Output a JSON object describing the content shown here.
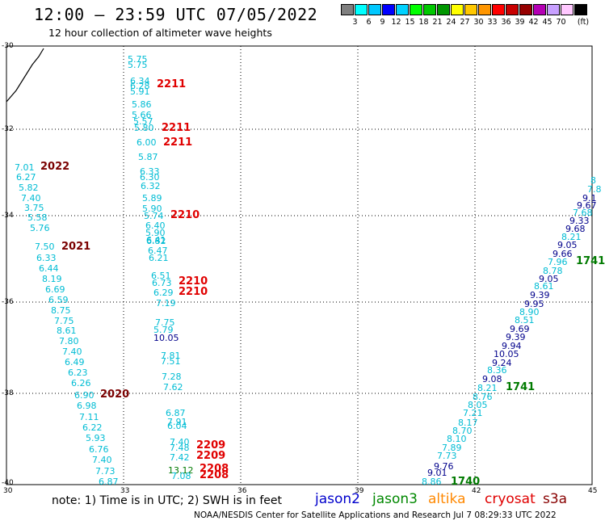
{
  "header": {
    "title": "12:00 – 23:59 UTC 07/05/2022",
    "subtitle": "12 hour collection of altimeter wave heights"
  },
  "legend": {
    "unit_label": "(ft)",
    "ticks": [
      "3",
      "6",
      "9",
      "12",
      "15",
      "18",
      "21",
      "24",
      "27",
      "30",
      "33",
      "36",
      "39",
      "42",
      "45",
      "70"
    ],
    "colors": [
      "#7f7f7f",
      "#00ffff",
      "#00c8ff",
      "#0000ff",
      "#00d2ff",
      "#00ff00",
      "#00c800",
      "#009600",
      "#ffff00",
      "#ffc800",
      "#ff9600",
      "#ff0000",
      "#c80000",
      "#960000",
      "#b400b4",
      "#c8a0ff",
      "#ffc8ff",
      "#000000"
    ]
  },
  "axes": {
    "x_ticks": [
      "30",
      "33",
      "36",
      "39",
      "42",
      "45"
    ],
    "y_ticks": [
      "-30",
      "-32",
      "-34",
      "-36",
      "-38",
      "-40"
    ]
  },
  "colors": {
    "cyan": "#00bcd4",
    "blue": "#00008b",
    "red": "#e00000",
    "darkred": "#7a0000",
    "green": "#007a00"
  },
  "labels": [
    {
      "t": "5.75",
      "c": "cyan"
    },
    {
      "t": "5.75",
      "c": "cyan"
    },
    {
      "t": "6.34",
      "c": "cyan"
    },
    {
      "t": "6.28",
      "c": "cyan"
    },
    {
      "t": "5.91",
      "c": "cyan"
    },
    {
      "t": "2211",
      "c": "red",
      "id": true
    },
    {
      "t": "5.86",
      "c": "cyan"
    },
    {
      "t": "5.66",
      "c": "cyan"
    },
    {
      "t": "5.57",
      "c": "cyan"
    },
    {
      "t": "5.80",
      "c": "cyan"
    },
    {
      "t": "2211",
      "c": "red",
      "id": true
    },
    {
      "t": "6.00",
      "c": "cyan"
    },
    {
      "t": "2211",
      "c": "red",
      "id": true
    },
    {
      "t": "5.87",
      "c": "cyan"
    },
    {
      "t": "6.33",
      "c": "cyan"
    },
    {
      "t": "6.30",
      "c": "cyan"
    },
    {
      "t": "6.32",
      "c": "cyan"
    },
    {
      "t": "7.01",
      "c": "cyan"
    },
    {
      "t": "2022",
      "c": "darkred",
      "id": true
    },
    {
      "t": "6.27",
      "c": "cyan"
    },
    {
      "t": "5.82",
      "c": "cyan"
    },
    {
      "t": "5.89",
      "c": "cyan"
    },
    {
      "t": "7.40",
      "c": "cyan"
    },
    {
      "t": "5.90",
      "c": "cyan"
    },
    {
      "t": "3.75",
      "c": "cyan"
    },
    {
      "t": "5.74",
      "c": "cyan"
    },
    {
      "t": "2210",
      "c": "red",
      "id": true
    },
    {
      "t": "5.58",
      "c": "cyan"
    },
    {
      "t": "6.40",
      "c": "cyan"
    },
    {
      "t": "5.90",
      "c": "cyan"
    },
    {
      "t": "5.76",
      "c": "cyan"
    },
    {
      "t": "6.41",
      "c": "cyan"
    },
    {
      "t": "6.82",
      "c": "cyan"
    },
    {
      "t": "7.50",
      "c": "cyan"
    },
    {
      "t": "2021",
      "c": "darkred",
      "id": true
    },
    {
      "t": "6.47",
      "c": "cyan"
    },
    {
      "t": "6.33",
      "c": "cyan"
    },
    {
      "t": "6.21",
      "c": "cyan"
    },
    {
      "t": "6.44",
      "c": "cyan"
    },
    {
      "t": "6.51",
      "c": "cyan"
    },
    {
      "t": "8.19",
      "c": "cyan"
    },
    {
      "t": "6.73",
      "c": "cyan"
    },
    {
      "t": "2210",
      "c": "red",
      "id": true
    },
    {
      "t": "6.69",
      "c": "cyan"
    },
    {
      "t": "6.29",
      "c": "cyan"
    },
    {
      "t": "2210",
      "c": "red",
      "id": true
    },
    {
      "t": "6.59",
      "c": "cyan"
    },
    {
      "t": "7.19",
      "c": "cyan"
    },
    {
      "t": "8.75",
      "c": "cyan"
    },
    {
      "t": "7.75",
      "c": "cyan"
    },
    {
      "t": "7.75",
      "c": "cyan"
    },
    {
      "t": "5.79",
      "c": "cyan"
    },
    {
      "t": "8.61",
      "c": "cyan"
    },
    {
      "t": "10.05",
      "c": "blue"
    },
    {
      "t": "7.80",
      "c": "cyan"
    },
    {
      "t": "7.40",
      "c": "cyan"
    },
    {
      "t": "7.81",
      "c": "cyan"
    },
    {
      "t": "6.49",
      "c": "cyan"
    },
    {
      "t": "7.51",
      "c": "cyan"
    },
    {
      "t": "6.23",
      "c": "cyan"
    },
    {
      "t": "7.28",
      "c": "cyan"
    },
    {
      "t": "6.26",
      "c": "cyan"
    },
    {
      "t": "7.62",
      "c": "cyan"
    },
    {
      "t": "6.90",
      "c": "cyan"
    },
    {
      "t": "2020",
      "c": "darkred",
      "id": true
    },
    {
      "t": "6.98",
      "c": "cyan"
    },
    {
      "t": "6.87",
      "c": "cyan"
    },
    {
      "t": "7.11",
      "c": "cyan"
    },
    {
      "t": "7.91",
      "c": "cyan"
    },
    {
      "t": "6.22",
      "c": "cyan"
    },
    {
      "t": "6.04",
      "c": "cyan"
    },
    {
      "t": "5.93",
      "c": "cyan"
    },
    {
      "t": "7.40",
      "c": "cyan"
    },
    {
      "t": "7.48",
      "c": "cyan"
    },
    {
      "t": "2209",
      "c": "red",
      "id": true
    },
    {
      "t": "6.76",
      "c": "cyan"
    },
    {
      "t": "7.42",
      "c": "cyan"
    },
    {
      "t": "2209",
      "c": "red",
      "id": true
    },
    {
      "t": "7.40",
      "c": "cyan"
    },
    {
      "t": "13.12",
      "c": "green"
    },
    {
      "t": "2208",
      "c": "red",
      "id": true
    },
    {
      "t": "7.73",
      "c": "cyan"
    },
    {
      "t": "7.08",
      "c": "cyan"
    },
    {
      "t": "2208",
      "c": "red",
      "id": true
    },
    {
      "t": "6.87",
      "c": "cyan"
    },
    {
      "t": "8.86",
      "c": "cyan"
    },
    {
      "t": "9.01",
      "c": "blue"
    },
    {
      "t": "1740",
      "c": "green",
      "id": true
    },
    {
      "t": "9.76",
      "c": "blue"
    },
    {
      "t": "7.73",
      "c": "cyan"
    },
    {
      "t": "7.89",
      "c": "cyan"
    },
    {
      "t": "8.10",
      "c": "cyan"
    },
    {
      "t": "8.70",
      "c": "cyan"
    },
    {
      "t": "8.17",
      "c": "cyan"
    },
    {
      "t": "7.21",
      "c": "cyan"
    },
    {
      "t": "8.05",
      "c": "cyan"
    },
    {
      "t": "8.76",
      "c": "cyan"
    },
    {
      "t": "8.21",
      "c": "cyan"
    },
    {
      "t": "1741",
      "c": "green",
      "id": true
    },
    {
      "t": "9.08",
      "c": "blue"
    },
    {
      "t": "8.36",
      "c": "cyan"
    },
    {
      "t": "9.24",
      "c": "blue"
    },
    {
      "t": "10.05",
      "c": "blue"
    },
    {
      "t": "9.94",
      "c": "blue"
    },
    {
      "t": "9.39",
      "c": "blue"
    },
    {
      "t": "9.69",
      "c": "blue"
    },
    {
      "t": "8.51",
      "c": "cyan"
    },
    {
      "t": "8.90",
      "c": "cyan"
    },
    {
      "t": "9.95",
      "c": "blue"
    },
    {
      "t": "9.39",
      "c": "blue"
    },
    {
      "t": "8.61",
      "c": "cyan"
    },
    {
      "t": "9.05",
      "c": "blue"
    },
    {
      "t": "8.78",
      "c": "cyan"
    },
    {
      "t": "7.96",
      "c": "cyan"
    },
    {
      "t": "1741",
      "c": "green",
      "id": true
    },
    {
      "t": "9.66",
      "c": "blue"
    },
    {
      "t": "9.05",
      "c": "blue"
    },
    {
      "t": "8.21",
      "c": "cyan"
    },
    {
      "t": "9.68",
      "c": "blue"
    },
    {
      "t": "9.33",
      "c": "blue"
    },
    {
      "t": "7.68",
      "c": "cyan"
    },
    {
      "t": "9.67",
      "c": "blue"
    },
    {
      "t": "9.1",
      "c": "blue"
    },
    {
      "t": "7.8",
      "c": "cyan"
    },
    {
      "t": "8",
      "c": "cyan"
    }
  ],
  "footer": {
    "note": "note:  1) Time is in UTC; 2) SWH is in feet",
    "satellites": [
      {
        "name": "jason2",
        "color": "#0000cc"
      },
      {
        "name": "jason3",
        "color": "#008800"
      },
      {
        "name": "altika",
        "color": "#ff8800"
      },
      {
        "name": "cryosat",
        "color": "#e00000"
      },
      {
        "name": "s3a",
        "color": "#880000"
      }
    ],
    "credit": "NOAA/NESDIS Center for Satellite Applications and Research    Jul  7 08:29:33 UTC 2022"
  }
}
